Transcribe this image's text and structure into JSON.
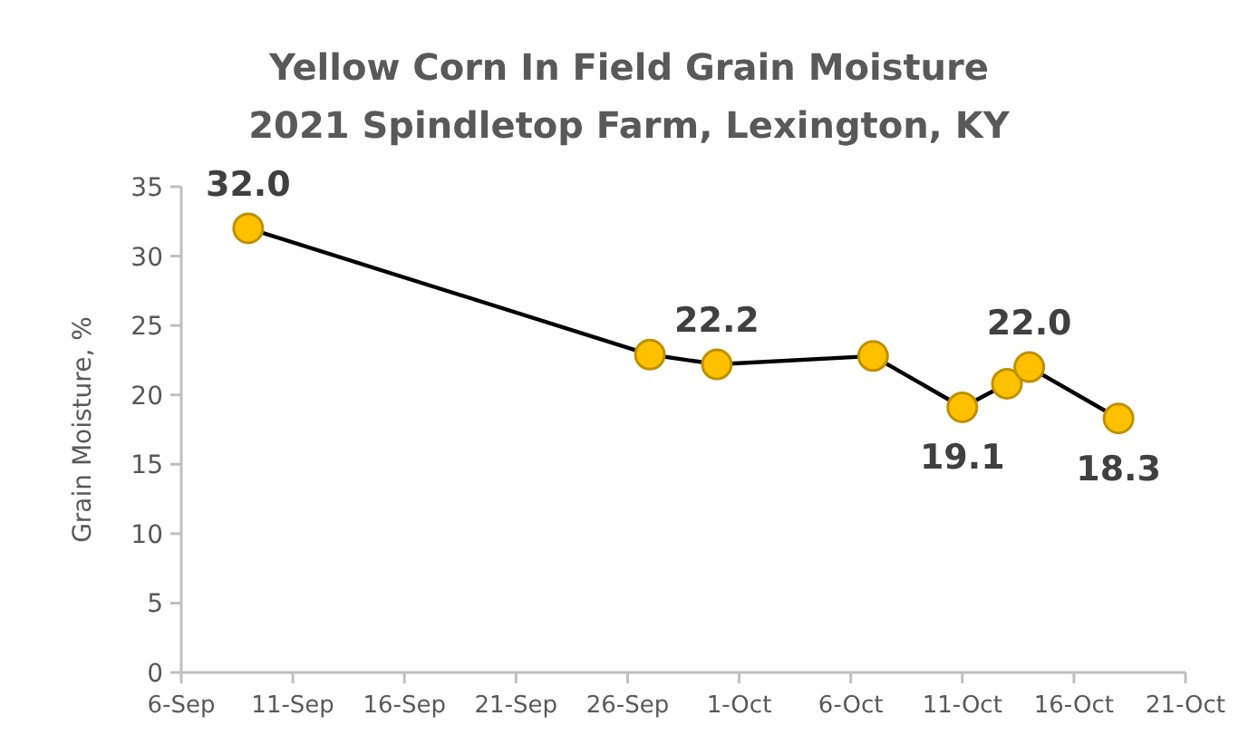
{
  "chart_data": {
    "type": "line",
    "title": "Yellow Corn In Field Grain Moisture",
    "subtitle": "2021 Spindletop Farm, Lexington, KY",
    "ylabel": "Grain Moisture, %",
    "x": [
      "2021-09-09",
      "2021-09-27",
      "2021-09-30",
      "2021-10-07",
      "2021-10-11",
      "2021-10-13",
      "2021-10-14",
      "2021-10-18"
    ],
    "series": [
      {
        "color": "#ffc000",
        "values": [
          32.0,
          22.9,
          22.2,
          22.8,
          19.1,
          20.8,
          22.0,
          18.3
        ],
        "value_labels": [
          "32.0",
          null,
          "22.2",
          null,
          "19.1",
          null,
          "22.0",
          "18.3"
        ]
      }
    ],
    "xlim": [
      "2021-09-06",
      "2021-10-21"
    ],
    "xticks": [
      {
        "value": "2021-09-06",
        "label": "6-Sep"
      },
      {
        "value": "2021-09-11",
        "label": "11-Sep"
      },
      {
        "value": "2021-09-16",
        "label": "16-Sep"
      },
      {
        "value": "2021-09-21",
        "label": "21-Sep"
      },
      {
        "value": "2021-09-26",
        "label": "26-Sep"
      },
      {
        "value": "2021-10-01",
        "label": "1-Oct"
      },
      {
        "value": "2021-10-06",
        "label": "6-Oct"
      },
      {
        "value": "2021-10-11",
        "label": "11-Oct"
      },
      {
        "value": "2021-10-16",
        "label": "16-Oct"
      },
      {
        "value": "2021-10-21",
        "label": "21-Oct"
      }
    ],
    "ylim": [
      0,
      35
    ],
    "yticks": [
      0,
      5,
      10,
      15,
      20,
      25,
      30,
      35
    ],
    "grid": false,
    "marker": "circle",
    "line_style": "solid"
  }
}
